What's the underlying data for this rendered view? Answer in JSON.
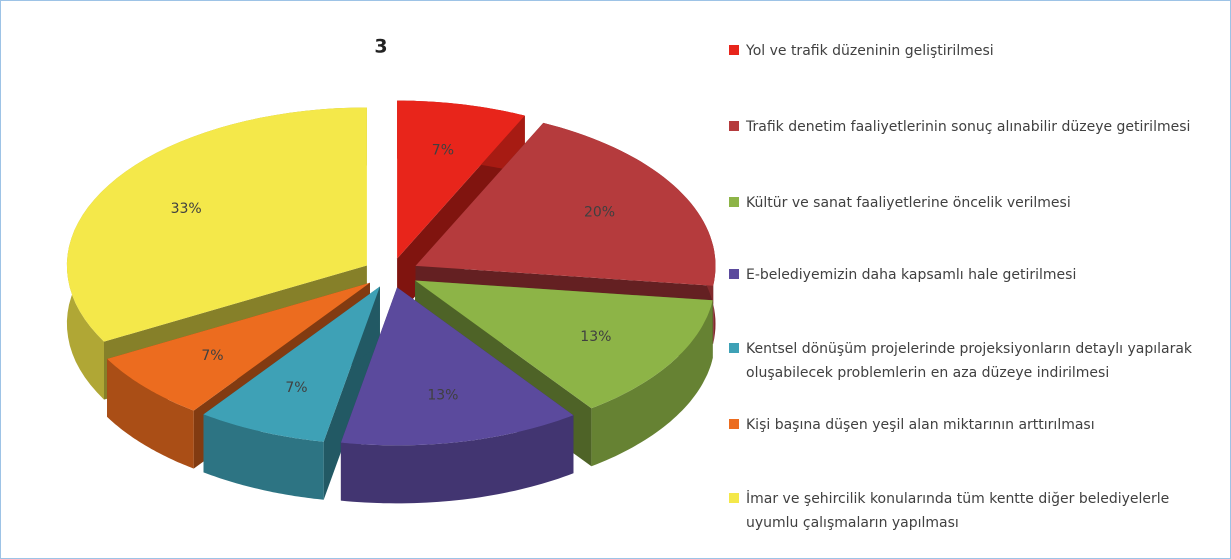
{
  "chart_data": {
    "type": "pie",
    "title": "3",
    "categories": [
      "Yol ve trafik düzeninin geliştirilmesi",
      "Trafik denetim faaliyetlerinin sonuç alınabilir düzeye getirilmesi",
      "Kültür ve sanat faaliyetlerine öncelik verilmesi",
      "E-belediyemizin daha kapsamlı hale getirilmesi",
      "Kentsel dönüşüm projelerinde projeksiyonların detaylı yapılarak oluşabilecek problemlerin en aza düzeye indirilmesi",
      "Kişi başına düşen yeşil alan miktarının arttırılması",
      "İmar ve şehircilik konularında tüm kentte diğer belediyelerle uyumlu çalışmaların yapılması"
    ],
    "values": [
      7,
      20,
      13,
      13,
      7,
      7,
      33
    ],
    "value_labels": [
      "7%",
      "20%",
      "13%",
      "13%",
      "7%",
      "7%",
      "33%"
    ],
    "colors": [
      "#e8251b",
      "#b53b3d",
      "#8db447",
      "#5b4a9d",
      "#3ea1b6",
      "#ec6c1f",
      "#f4e84a"
    ],
    "legend": "right"
  }
}
